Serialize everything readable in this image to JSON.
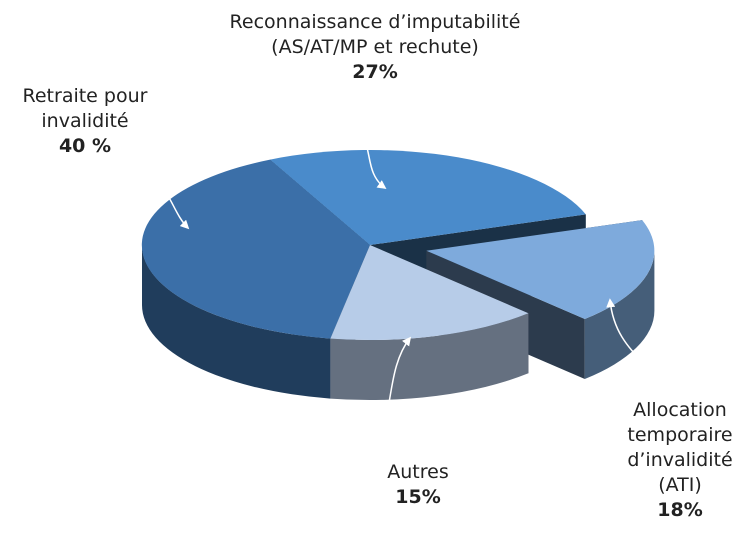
{
  "chart_data": {
    "type": "pie",
    "categories": [
      "Retraite pour invalidité",
      "Reconnaissance d’imputabilité (AS/AT/MP et rechute)",
      "Allocation temporaire d’invalidité (ATI)",
      "Autres"
    ],
    "values": [
      40,
      27,
      18,
      15
    ],
    "value_labels": [
      "40 %",
      "27%",
      "18%",
      "15%"
    ],
    "colors": [
      "#3b6fa8",
      "#4a8bcb",
      "#7eaadc",
      "#b7cce8"
    ],
    "exploded": [
      false,
      false,
      true,
      false
    ]
  }
}
